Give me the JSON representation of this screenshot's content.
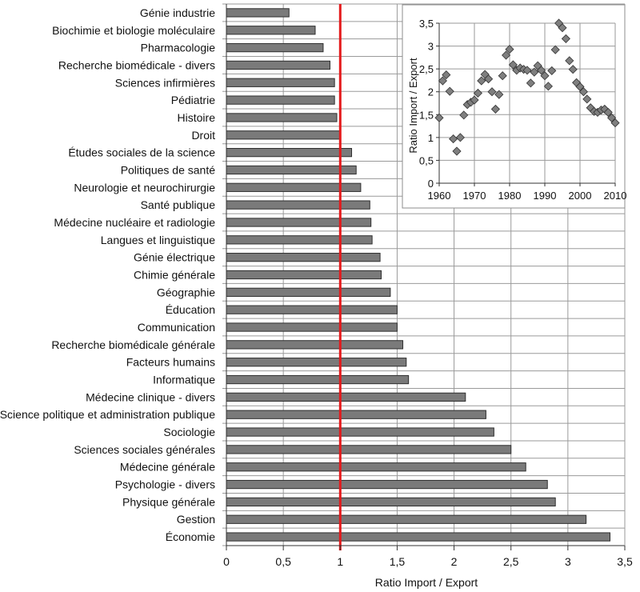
{
  "chart_data": [
    {
      "type": "bar",
      "orientation": "horizontal",
      "categories": [
        "Génie industrie",
        "Biochimie et biologie moléculaire",
        "Pharmacologie",
        "Recherche biomédicale - divers",
        "Sciences infirmières",
        "Pédiatrie",
        "Histoire",
        "Droit",
        "Études sociales de la science",
        "Politiques de santé",
        "Neurologie et neurochirurgie",
        "Santé publique",
        "Médecine nucléaire et radiologie",
        "Langues et linguistique",
        "Génie électrique",
        "Chimie générale",
        "Géographie",
        "Éducation",
        "Communication",
        "Recherche biomédicale générale",
        "Facteurs humains",
        "Informatique",
        "Médecine clinique - divers",
        "Science politique et administration publique",
        "Sociologie",
        "Sciences sociales générales",
        "Médecine générale",
        "Psychologie - divers",
        "Physique générale",
        "Gestion",
        "Économie"
      ],
      "values": [
        0.55,
        0.78,
        0.85,
        0.91,
        0.95,
        0.95,
        0.97,
        1.0,
        1.1,
        1.14,
        1.18,
        1.26,
        1.27,
        1.28,
        1.35,
        1.36,
        1.44,
        1.5,
        1.5,
        1.55,
        1.58,
        1.6,
        2.1,
        2.28,
        2.35,
        2.5,
        2.63,
        2.82,
        2.89,
        3.16,
        3.37
      ],
      "xlabel": "Ratio Import / Export",
      "ylabel": "",
      "xlim": [
        0,
        3.5
      ],
      "xticks": [
        "0",
        "0,5",
        "1",
        "1,5",
        "2",
        "2,5",
        "3",
        "3,5"
      ],
      "reference_line": {
        "x": 1,
        "color": "#e41a1c"
      },
      "bar_color": "#7a7a7a",
      "grid": true
    },
    {
      "type": "scatter",
      "x": [
        1960,
        1961,
        1962,
        1963,
        1964,
        1965,
        1966,
        1967,
        1968,
        1969,
        1970,
        1971,
        1972,
        1973,
        1974,
        1975,
        1976,
        1977,
        1978,
        1979,
        1980,
        1981,
        1982,
        1983,
        1984,
        1985,
        1986,
        1987,
        1988,
        1989,
        1990,
        1991,
        1992,
        1993,
        1994,
        1995,
        1996,
        1997,
        1998,
        1999,
        2000,
        2001,
        2002,
        2003,
        2004,
        2005,
        2006,
        2007,
        2008,
        2009,
        2010
      ],
      "y": [
        1.43,
        2.24,
        2.37,
        2.01,
        0.97,
        0.7,
        1.0,
        1.49,
        1.72,
        1.77,
        1.82,
        1.97,
        2.24,
        2.38,
        2.28,
        2.0,
        1.62,
        1.94,
        2.35,
        2.8,
        2.93,
        2.59,
        2.47,
        2.52,
        2.49,
        2.47,
        2.19,
        2.43,
        2.57,
        2.47,
        2.35,
        2.12,
        2.46,
        2.92,
        3.5,
        3.4,
        3.16,
        2.68,
        2.49,
        2.2,
        2.11,
        2.0,
        1.84,
        1.65,
        1.57,
        1.55,
        1.6,
        1.62,
        1.55,
        1.43,
        1.32
      ],
      "xlabel": "",
      "ylabel": "Ratio Import / Export",
      "xlim": [
        1960,
        2010
      ],
      "ylim": [
        0,
        3.5
      ],
      "xticks": [
        "1960",
        "1970",
        "1980",
        "1990",
        "2000",
        "2010"
      ],
      "yticks": [
        "0",
        "0,5",
        "1",
        "1,5",
        "2",
        "2,5",
        "3",
        "3,5"
      ],
      "marker": "diamond",
      "marker_color": "#7f7f7f",
      "grid": true,
      "legend": "none"
    }
  ]
}
